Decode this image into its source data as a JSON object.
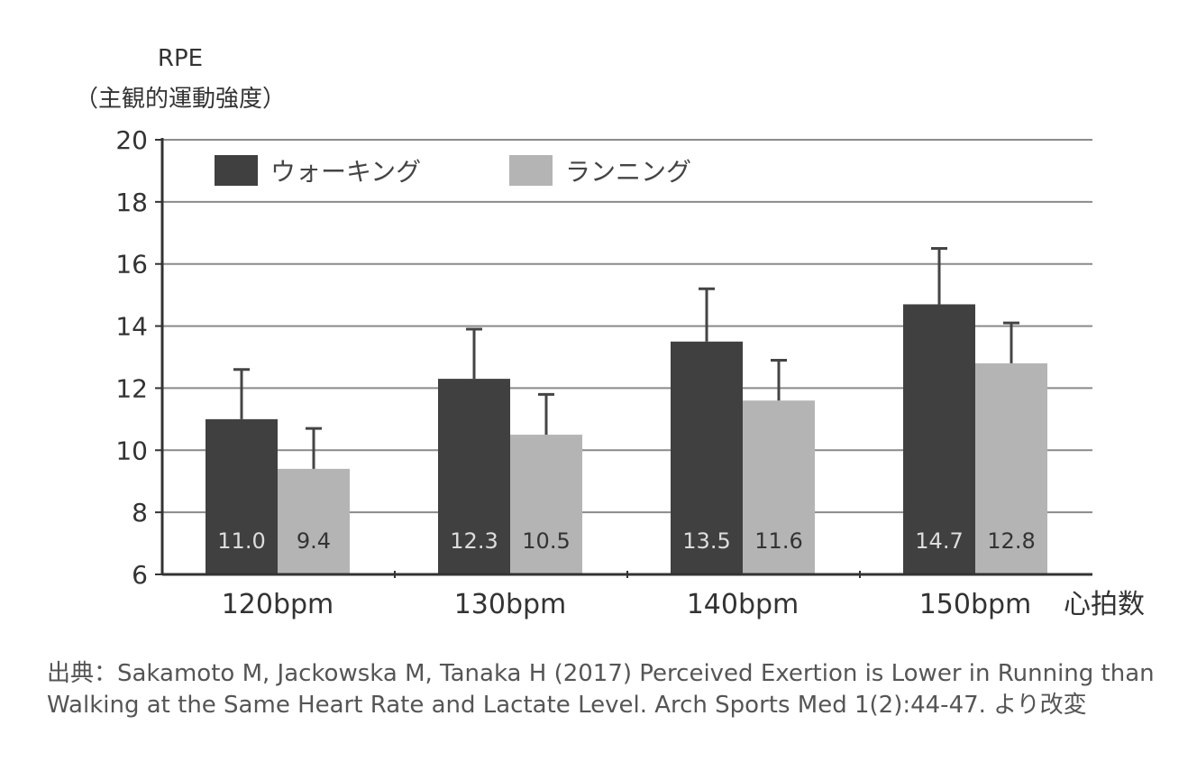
{
  "chart_data": {
    "type": "bar",
    "ylabel_line1": "RPE",
    "ylabel_line2": "（主観的運動強度）",
    "xlabel": "心拍数",
    "categories": [
      "120bpm",
      "130bpm",
      "140bpm",
      "150bpm"
    ],
    "ylim": [
      6,
      20
    ],
    "yticks": [
      6,
      8,
      10,
      12,
      14,
      16,
      18,
      20
    ],
    "grid": true,
    "legend_position": "top-left",
    "series": [
      {
        "name": "ウォーキング",
        "color": "#404040",
        "label_color": "#dddddd",
        "values": [
          11.0,
          12.3,
          13.5,
          14.7
        ],
        "labels": [
          "11.0",
          "12.3",
          "13.5",
          "14.7"
        ],
        "error_upper": [
          12.6,
          13.9,
          15.2,
          16.5
        ]
      },
      {
        "name": "ランニング",
        "color": "#b4b4b4",
        "label_color": "#333333",
        "values": [
          9.4,
          10.5,
          11.6,
          12.8
        ],
        "labels": [
          "9.4",
          "10.5",
          "11.6",
          "12.8"
        ],
        "error_upper": [
          10.7,
          11.8,
          12.9,
          14.1
        ]
      }
    ]
  },
  "source_text": "出典：Sakamoto M, Jackowska M, Tanaka H (2017) Perceived Exertion is Lower in Running than Walking at the Same Heart Rate and Lactate Level. Arch Sports Med 1(2):44-47. より改変"
}
